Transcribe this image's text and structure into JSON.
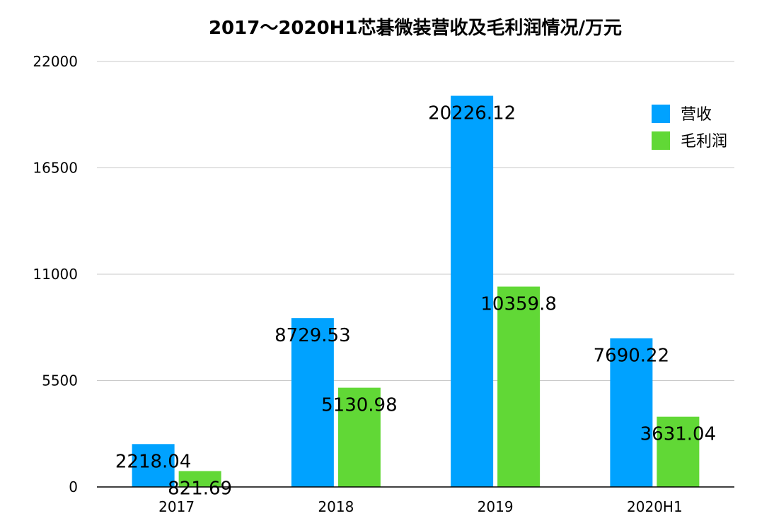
{
  "chart_data": {
    "type": "bar",
    "title": "2017～2020H1芯碁微装营收及毛利润情况/万元",
    "categories": [
      "2017",
      "2018",
      "2019",
      "2020H1"
    ],
    "series": [
      {
        "name": "营收",
        "color": "#00a2ff",
        "values": [
          2218.04,
          8729.53,
          20226.12,
          7690.22
        ],
        "labels": [
          "2218.04",
          "8729.53",
          "20226.12",
          "7690.22"
        ]
      },
      {
        "name": "毛利润",
        "color": "#61d836",
        "values": [
          821.69,
          5130.98,
          10359.8,
          3631.04
        ],
        "labels": [
          "821.69",
          "5130.98",
          "10359.8",
          "3631.04"
        ]
      }
    ],
    "xlabel": "",
    "ylabel": "",
    "ylim": [
      0,
      22000
    ],
    "yticks": [
      "0",
      "5500",
      "11000",
      "16500",
      "22000"
    ],
    "grid": true,
    "legend": "top-right"
  }
}
